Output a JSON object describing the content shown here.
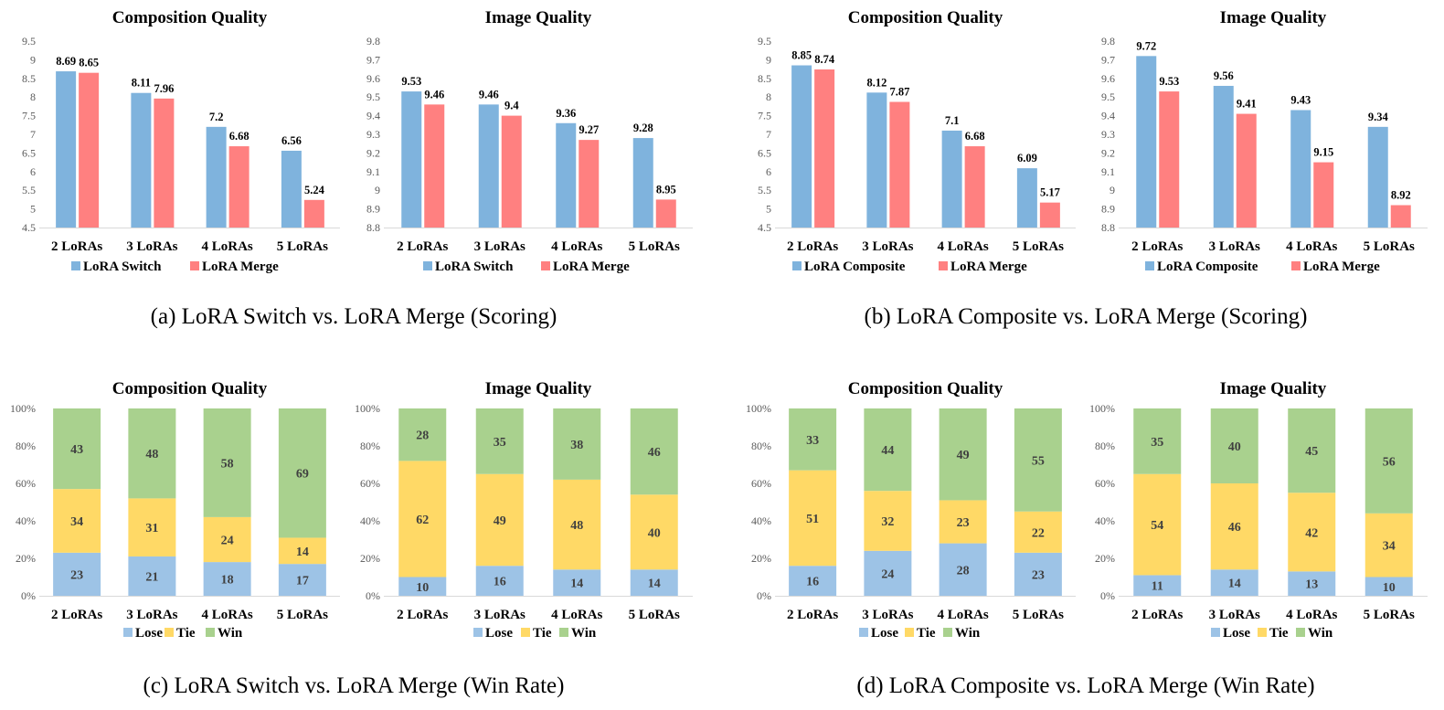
{
  "colors": {
    "switch_blue": "#7fb3dd",
    "merge_red": "#ff8080",
    "lose_blue": "#9dc3e6",
    "tie_yellow": "#ffd966",
    "win_green": "#a9d18e",
    "axis_grey": "#d9d9d9"
  },
  "captions": {
    "a": "(a) LoRA Switch vs. LoRA Merge (Scoring)",
    "b": "(b) LoRA Composite vs. LoRA Merge (Scoring)",
    "c": "(c) LoRA Switch vs. LoRA Merge (Win Rate)",
    "d": "(d) LoRA Composite vs. LoRA Merge (Win Rate)"
  },
  "chart_data": [
    {
      "id": "a-composition",
      "type": "bar",
      "title": "Composition Quality",
      "categories": [
        "2 LoRAs",
        "3 LoRAs",
        "4 LoRAs",
        "5 LoRAs"
      ],
      "ylim": [
        4.5,
        9.5
      ],
      "yticks": [
        "4.5",
        "5",
        "5.5",
        "6",
        "6.5",
        "7",
        "7.5",
        "8",
        "8.5",
        "9",
        "9.5"
      ],
      "series": [
        {
          "name": "LoRA Switch",
          "color": "#7fb3dd",
          "values": [
            8.69,
            8.11,
            7.2,
            6.56
          ],
          "labels": [
            "8.69",
            "8.11",
            "7.2",
            "6.56"
          ]
        },
        {
          "name": "LoRA Merge",
          "color": "#ff8080",
          "values": [
            8.65,
            7.96,
            6.68,
            5.24
          ],
          "labels": [
            "8.65",
            "7.96",
            "6.68",
            "5.24"
          ]
        }
      ]
    },
    {
      "id": "a-image",
      "type": "bar",
      "title": "Image Quality",
      "categories": [
        "2 LoRAs",
        "3 LoRAs",
        "4 LoRAs",
        "5 LoRAs"
      ],
      "ylim": [
        8.8,
        9.8
      ],
      "yticks": [
        "8.8",
        "8.9",
        "9",
        "9.1",
        "9.2",
        "9.3",
        "9.4",
        "9.5",
        "9.6",
        "9.7",
        "9.8"
      ],
      "series": [
        {
          "name": "LoRA Switch",
          "color": "#7fb3dd",
          "values": [
            9.53,
            9.46,
            9.36,
            9.28
          ],
          "labels": [
            "9.53",
            "9.46",
            "9.36",
            "9.28"
          ]
        },
        {
          "name": "LoRA Merge",
          "color": "#ff8080",
          "values": [
            9.46,
            9.4,
            9.27,
            8.95
          ],
          "labels": [
            "9.46",
            "9.4",
            "9.27",
            "8.95"
          ]
        }
      ]
    },
    {
      "id": "b-composition",
      "type": "bar",
      "title": "Composition Quality",
      "categories": [
        "2 LoRAs",
        "3 LoRAs",
        "4 LoRAs",
        "5 LoRAs"
      ],
      "ylim": [
        4.5,
        9.5
      ],
      "yticks": [
        "4.5",
        "5",
        "5.5",
        "6",
        "6.5",
        "7",
        "7.5",
        "8",
        "8.5",
        "9",
        "9.5"
      ],
      "series": [
        {
          "name": "LoRA Composite",
          "color": "#7fb3dd",
          "values": [
            8.85,
            8.12,
            7.1,
            6.09
          ],
          "labels": [
            "8.85",
            "8.12",
            "7.1",
            "6.09"
          ]
        },
        {
          "name": "LoRA Merge",
          "color": "#ff8080",
          "values": [
            8.74,
            7.87,
            6.68,
            5.17
          ],
          "labels": [
            "8.74",
            "7.87",
            "6.68",
            "5.17"
          ]
        }
      ]
    },
    {
      "id": "b-image",
      "type": "bar",
      "title": "Image Quality",
      "categories": [
        "2 LoRAs",
        "3 LoRAs",
        "4 LoRAs",
        "5 LoRAs"
      ],
      "ylim": [
        8.8,
        9.8
      ],
      "yticks": [
        "8.8",
        "8.9",
        "9",
        "9.1",
        "9.2",
        "9.3",
        "9.4",
        "9.5",
        "9.6",
        "9.7",
        "9.8"
      ],
      "series": [
        {
          "name": "LoRA Composite",
          "color": "#7fb3dd",
          "values": [
            9.72,
            9.56,
            9.43,
            9.34
          ],
          "labels": [
            "9.72",
            "9.56",
            "9.43",
            "9.34"
          ]
        },
        {
          "name": "LoRA Merge",
          "color": "#ff8080",
          "values": [
            9.53,
            9.41,
            9.15,
            8.92
          ],
          "labels": [
            "9.53",
            "9.41",
            "9.15",
            "8.92"
          ]
        }
      ]
    },
    {
      "id": "c-composition",
      "type": "stacked-bar",
      "title": "Composition Quality",
      "categories": [
        "2 LoRAs",
        "3 LoRAs",
        "4 LoRAs",
        "5 LoRAs"
      ],
      "ylim": [
        0,
        100
      ],
      "yticks": [
        "0%",
        "20%",
        "40%",
        "60%",
        "80%",
        "100%"
      ],
      "series": [
        {
          "name": "Lose",
          "color": "#9dc3e6",
          "values": [
            23,
            21,
            18,
            17
          ],
          "labels": [
            "23",
            "21",
            "18",
            "17"
          ]
        },
        {
          "name": "Tie",
          "color": "#ffd966",
          "values": [
            34,
            31,
            24,
            14
          ],
          "labels": [
            "34",
            "31",
            "24",
            "14"
          ]
        },
        {
          "name": "Win",
          "color": "#a9d18e",
          "values": [
            43,
            48,
            58,
            69
          ],
          "labels": [
            "43",
            "48",
            "58",
            "69"
          ]
        }
      ]
    },
    {
      "id": "c-image",
      "type": "stacked-bar",
      "title": "Image Quality",
      "categories": [
        "2 LoRAs",
        "3 LoRAs",
        "4 LoRAs",
        "5 LoRAs"
      ],
      "ylim": [
        0,
        100
      ],
      "yticks": [
        "0%",
        "20%",
        "40%",
        "60%",
        "80%",
        "100%"
      ],
      "series": [
        {
          "name": "Lose",
          "color": "#9dc3e6",
          "values": [
            10,
            16,
            14,
            14
          ],
          "labels": [
            "10",
            "16",
            "14",
            "14"
          ]
        },
        {
          "name": "Tie",
          "color": "#ffd966",
          "values": [
            62,
            49,
            48,
            40
          ],
          "labels": [
            "62",
            "49",
            "48",
            "40"
          ]
        },
        {
          "name": "Win",
          "color": "#a9d18e",
          "values": [
            28,
            35,
            38,
            46
          ],
          "labels": [
            "28",
            "35",
            "38",
            "46"
          ]
        }
      ]
    },
    {
      "id": "d-composition",
      "type": "stacked-bar",
      "title": "Composition Quality",
      "categories": [
        "2 LoRAs",
        "3 LoRAs",
        "4 LoRAs",
        "5 LoRAs"
      ],
      "ylim": [
        0,
        100
      ],
      "yticks": [
        "0%",
        "20%",
        "40%",
        "60%",
        "80%",
        "100%"
      ],
      "series": [
        {
          "name": "Lose",
          "color": "#9dc3e6",
          "values": [
            16,
            24,
            28,
            23
          ],
          "labels": [
            "16",
            "24",
            "28",
            "23"
          ]
        },
        {
          "name": "Tie",
          "color": "#ffd966",
          "values": [
            51,
            32,
            23,
            22
          ],
          "labels": [
            "51",
            "32",
            "23",
            "22"
          ]
        },
        {
          "name": "Win",
          "color": "#a9d18e",
          "values": [
            33,
            44,
            49,
            55
          ],
          "labels": [
            "33",
            "44",
            "49",
            "55"
          ]
        }
      ]
    },
    {
      "id": "d-image",
      "type": "stacked-bar",
      "title": "Image Quality",
      "categories": [
        "2 LoRAs",
        "3 LoRAs",
        "4 LoRAs",
        "5 LoRAs"
      ],
      "ylim": [
        0,
        100
      ],
      "yticks": [
        "0%",
        "20%",
        "40%",
        "60%",
        "80%",
        "100%"
      ],
      "series": [
        {
          "name": "Lose",
          "color": "#9dc3e6",
          "values": [
            11,
            14,
            13,
            10
          ],
          "labels": [
            "11",
            "14",
            "13",
            "10"
          ]
        },
        {
          "name": "Tie",
          "color": "#ffd966",
          "values": [
            54,
            46,
            42,
            34
          ],
          "labels": [
            "54",
            "46",
            "42",
            "34"
          ]
        },
        {
          "name": "Win",
          "color": "#a9d18e",
          "values": [
            35,
            40,
            45,
            56
          ],
          "labels": [
            "35",
            "40",
            "45",
            "56"
          ]
        }
      ]
    }
  ]
}
